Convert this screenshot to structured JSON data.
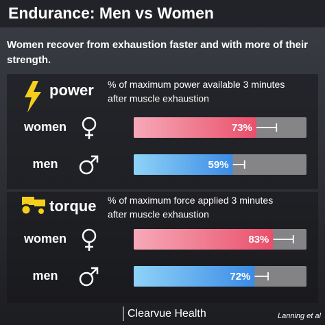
{
  "title": "Endurance: Men vs Women",
  "subtitle": "Women recover from exhaustion faster and with more of their strength.",
  "footer": {
    "brand": "Clearvue Health",
    "source": "Lanning et al"
  },
  "chart_data": [
    {
      "type": "bar",
      "orientation": "horizontal",
      "title": "power",
      "subtitle": "% of maximum power available 3 minutes after muscle exhaustion",
      "categories": [
        "women",
        "men"
      ],
      "values": [
        73,
        59
      ],
      "value_labels": [
        "73%",
        "59%"
      ],
      "errors": [
        12,
        7
      ],
      "colors": [
        "#ee5f78",
        "#4aa0ee"
      ],
      "xlim": [
        0,
        100
      ]
    },
    {
      "type": "bar",
      "orientation": "horizontal",
      "title": "torque",
      "subtitle": "% of maximum force applied 3 minutes after muscle exhaustion",
      "categories": [
        "women",
        "men"
      ],
      "values": [
        83,
        72
      ],
      "value_labels": [
        "83%",
        "72%"
      ],
      "errors": [
        12,
        8
      ],
      "colors": [
        "#ee5f78",
        "#4aa0ee"
      ],
      "xlim": [
        0,
        100
      ]
    }
  ]
}
